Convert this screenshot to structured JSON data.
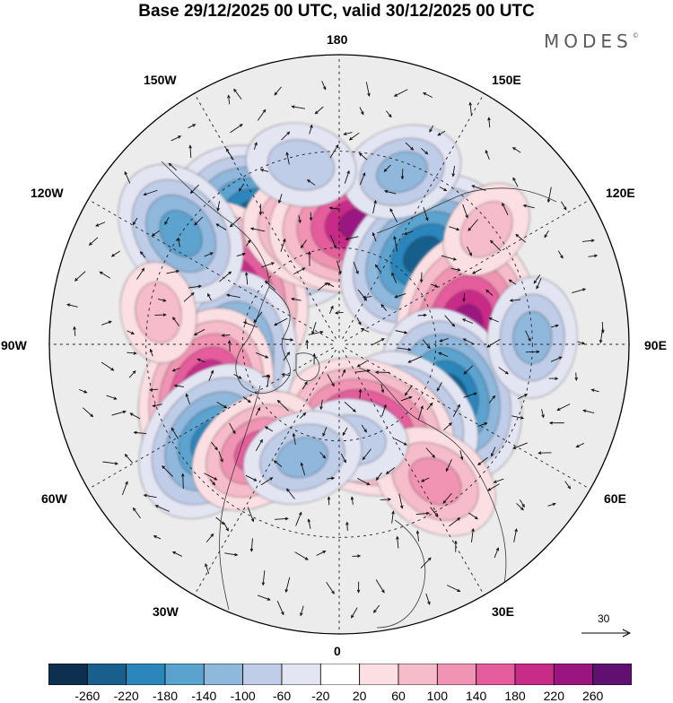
{
  "title": "Base 29/12/2025 00 UTC, valid 30/12/2025 00 UTC",
  "brand": "MODES",
  "brand_mark": "©",
  "longitude_labels": {
    "lon_180": "180",
    "lon_150e": "150E",
    "lon_120e": "120E",
    "lon_90e": "90E",
    "lon_60e": "60E",
    "lon_30e": "30E",
    "lon_0": "0",
    "lon_30w": "30W",
    "lon_60w": "60W",
    "lon_90w": "90W",
    "lon_120w": "120W",
    "lon_150w": "150W"
  },
  "reference_vector": {
    "label": "30"
  },
  "colorbar": {
    "colors": [
      "#0d3050",
      "#185f8c",
      "#2a86bb",
      "#5ba3cf",
      "#8fb8dc",
      "#c0cde8",
      "#e4e5f3",
      "#ffffff",
      "#fbdfe3",
      "#f6bccb",
      "#f194b3",
      "#e55d9c",
      "#c82b88",
      "#9b1580",
      "#5f1070"
    ],
    "ticks": [
      "-260",
      "-220",
      "-180",
      "-140",
      "-100",
      "-60",
      "-20",
      "20",
      "60",
      "100",
      "140",
      "180",
      "220",
      "260"
    ]
  },
  "anomalies": [
    {
      "name": "neg-150w-a",
      "lon": -148,
      "lat": 47,
      "value": -260
    },
    {
      "name": "pos-120w",
      "lon": -118,
      "lat": 53,
      "value": 230
    },
    {
      "name": "pos-175w",
      "lon": -173,
      "lat": 54,
      "value": 190
    },
    {
      "name": "pos-170e",
      "lon": 170,
      "lat": 52,
      "value": 230
    },
    {
      "name": "neg-140e",
      "lon": 137,
      "lat": 52,
      "value": -230
    },
    {
      "name": "pos-100e",
      "lon": 98,
      "lat": 50,
      "value": 240
    },
    {
      "name": "neg-70e",
      "lon": 66,
      "lat": 52,
      "value": -220
    },
    {
      "name": "neg-45e",
      "lon": 45,
      "lat": 58,
      "value": -160
    },
    {
      "name": "pos-20e",
      "lon": 18,
      "lat": 63,
      "value": 220
    },
    {
      "name": "pos-30e-s",
      "lon": 35,
      "lat": 38,
      "value": 120
    },
    {
      "name": "neg-10e",
      "lon": 8,
      "lat": 60,
      "value": -80
    },
    {
      "name": "neg-85w",
      "lon": -84,
      "lat": 57,
      "value": -200
    },
    {
      "name": "pos-70w",
      "lon": -70,
      "lat": 46,
      "value": 210
    },
    {
      "name": "neg-55w",
      "lon": -53,
      "lat": 40,
      "value": -200
    },
    {
      "name": "pos-40w",
      "lon": -38,
      "lat": 48,
      "value": 140
    },
    {
      "name": "neg-20w",
      "lon": -18,
      "lat": 53,
      "value": -100
    },
    {
      "name": "neg-125w",
      "lon": -125,
      "lat": 30,
      "value": -160
    },
    {
      "name": "neg-160e",
      "lon": 160,
      "lat": 33,
      "value": -100
    },
    {
      "name": "pos-130e-s",
      "lon": 128,
      "lat": 32,
      "value": 60
    },
    {
      "name": "neg-90e-s",
      "lon": 92,
      "lat": 30,
      "value": -100
    },
    {
      "name": "neg-170w-s",
      "lon": -168,
      "lat": 33,
      "value": -80
    },
    {
      "name": "pos-100w-s",
      "lon": -100,
      "lat": 33,
      "value": 60
    }
  ]
}
